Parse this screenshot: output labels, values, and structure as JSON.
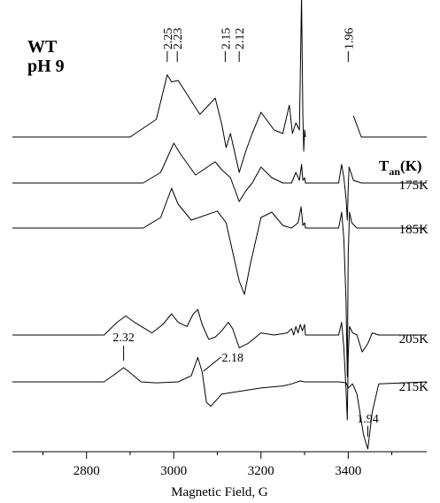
{
  "chart_data": {
    "type": "line",
    "xlabel": "Magnetic Field, G",
    "xlim": [
      2630,
      3580
    ],
    "x_ticks": [
      2800,
      3000,
      3200,
      3400
    ],
    "sample_label_line1": "WT",
    "sample_label_line2": "pH 9",
    "temperature_header": "T",
    "temperature_header_subscript": "an",
    "temperature_header_unit": "(K)",
    "g_markers_top": [
      "2.25",
      "2.23",
      "2.15",
      "2.12",
      "1.96"
    ],
    "g_markers_inline": [
      "2.32",
      "2.18",
      "1.94"
    ],
    "series": [
      {
        "name": "",
        "x": [
          2630,
          2900,
          2960,
          2985,
          2995,
          3010,
          3060,
          3095,
          3110,
          3120,
          3130,
          3150,
          3165,
          3180,
          3200,
          3230,
          3250,
          3265,
          3272,
          3280,
          3288,
          3293,
          3296,
          3298,
          3300,
          3302,
          3380,
          3390,
          3395,
          3398,
          3400,
          3403,
          3406,
          3412,
          3430,
          3580
        ],
        "y": [
          0,
          0,
          0.25,
          0.88,
          0.78,
          0.8,
          0.32,
          0.55,
          0.18,
          -0.15,
          0.05,
          -0.5,
          -0.2,
          0.05,
          0.35,
          0.1,
          0.05,
          0.45,
          0.05,
          0.2,
          0.1,
          2.0,
          0.3,
          -0.2,
          0.1,
          0.0,
          null,
          null,
          null,
          null,
          null,
          null,
          null,
          0.3,
          0.0,
          0.0
        ]
      },
      {
        "name": "175K",
        "x": [
          2630,
          2930,
          2970,
          3000,
          3015,
          3050,
          3095,
          3110,
          3130,
          3150,
          3165,
          3180,
          3200,
          3225,
          3250,
          3270,
          3280,
          3288,
          3293,
          3296,
          3300,
          3302,
          3378,
          3385,
          3390,
          3395,
          3398,
          3400,
          3402,
          3406,
          3412,
          3430,
          3580
        ],
        "y": [
          0,
          0,
          0.2,
          0.75,
          0.55,
          0.15,
          0.4,
          0.25,
          0.1,
          -0.35,
          -0.15,
          0.0,
          0.3,
          0.1,
          0.0,
          0.0,
          0.2,
          0.05,
          0.35,
          0.05,
          0.1,
          0.0,
          0.0,
          0.35,
          0.1,
          -0.3,
          -0.7,
          -0.1,
          0.3,
          0.2,
          0.05,
          0.0,
          0.0
        ]
      },
      {
        "name": "185K",
        "x": [
          2630,
          2930,
          2970,
          2995,
          3010,
          3040,
          3100,
          3120,
          3150,
          3162,
          3175,
          3200,
          3225,
          3250,
          3270,
          3285,
          3292,
          3296,
          3300,
          3302,
          3378,
          3385,
          3390,
          3395,
          3398,
          3400,
          3403,
          3408,
          3420,
          3580
        ],
        "y": [
          0,
          0,
          0.2,
          0.75,
          0.45,
          0.15,
          0.32,
          0.1,
          -1.0,
          -1.25,
          -0.7,
          0.2,
          0.3,
          0.05,
          0.0,
          0.1,
          0.4,
          0.05,
          0.1,
          0.0,
          0.0,
          0.3,
          -0.2,
          -1.4,
          -2.8,
          -0.5,
          0.3,
          0.1,
          0.0,
          0.0
        ]
      },
      {
        "name": "205K",
        "x": [
          2630,
          2840,
          2870,
          2890,
          2910,
          2950,
          2975,
          2995,
          3010,
          3030,
          3045,
          3055,
          3065,
          3080,
          3095,
          3110,
          3125,
          3135,
          3150,
          3170,
          3200,
          3230,
          3260,
          3270,
          3275,
          3280,
          3285,
          3290,
          3295,
          3300,
          3302,
          3378,
          3385,
          3390,
          3395,
          3398,
          3400,
          3403,
          3410,
          3420,
          3432,
          3445,
          3455,
          3470,
          3580
        ],
        "y": [
          0,
          0,
          0.3,
          0.45,
          0.3,
          0.05,
          0.25,
          0.5,
          0.3,
          0.2,
          0.5,
          0.6,
          0.25,
          -0.1,
          -0.05,
          0.1,
          0.3,
          0.15,
          -0.3,
          -0.2,
          0.05,
          0.0,
          0.05,
          0.15,
          0.0,
          0.2,
          0.05,
          0.25,
          0.1,
          0.25,
          0.0,
          0.0,
          0.3,
          -0.3,
          -1.3,
          -2.0,
          -0.5,
          0.2,
          0.05,
          0.0,
          -0.4,
          -0.2,
          0.05,
          0.0,
          0.0
        ]
      },
      {
        "name": "215K",
        "x": [
          2630,
          2840,
          2870,
          2885,
          2900,
          2925,
          2960,
          3010,
          3040,
          3055,
          3065,
          3075,
          3085,
          3110,
          3200,
          3250,
          3270,
          3290,
          3300,
          3302,
          3380,
          3395,
          3400,
          3410,
          3420,
          3435,
          3445,
          3455,
          3470,
          3580
        ],
        "y": [
          0,
          0,
          0.45,
          0.7,
          0.45,
          0.0,
          -0.05,
          0.0,
          0.3,
          1.2,
          0.5,
          -1.0,
          -1.2,
          -0.6,
          -0.3,
          -0.2,
          -0.1,
          0.05,
          0.0,
          0.0,
          0.0,
          -0.05,
          -0.3,
          -0.1,
          -0.6,
          -2.6,
          -3.3,
          -1.5,
          -0.1,
          0.0
        ]
      }
    ]
  }
}
